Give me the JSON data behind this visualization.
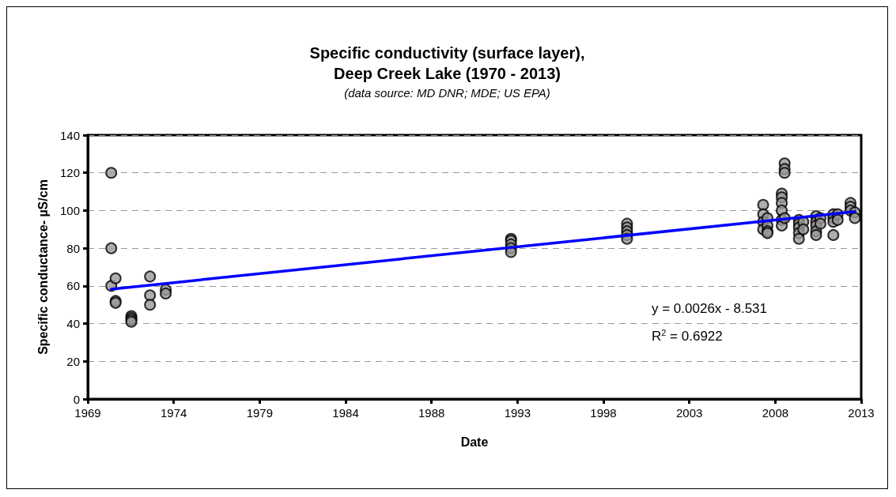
{
  "chart_data": {
    "type": "scatter",
    "title": "Specific conductivity (surface layer),\nDeep Creek Lake (1970 - 2013)",
    "subtitle": "(data source: MD DNR; MDE; US EPA)",
    "xlabel": "Date",
    "ylabel": "Specific conductance- µS/cm",
    "annotations": [
      "y = 0.0026x - 8.531",
      "R$^{2}$ = 0.6922"
    ],
    "xlim": [
      "1969-01-01",
      "2013-12-28"
    ],
    "xticks": [
      {
        "value": "1969-01-01",
        "label": "1969"
      },
      {
        "value": "1974-01-01",
        "label": "1974"
      },
      {
        "value": "1979-01-01",
        "label": "1979"
      },
      {
        "value": "1984-01-01",
        "label": "1984"
      },
      {
        "value": "1988-12-31",
        "label": "1988"
      },
      {
        "value": "1993-12-30",
        "label": "1993"
      },
      {
        "value": "1998-12-30",
        "label": "1998"
      },
      {
        "value": "2003-12-30",
        "label": "2003"
      },
      {
        "value": "2008-12-29",
        "label": "2008"
      },
      {
        "value": "2013-12-28",
        "label": "2013"
      }
    ],
    "ylim": [
      0,
      140
    ],
    "yticks": [
      0,
      20,
      40,
      60,
      80,
      100,
      120,
      140
    ],
    "grid": "y",
    "marker": "circle",
    "series": [
      {
        "color": "#999999",
        "x": [
          "1970-05-15",
          "1970-05-15",
          "1970-05-15",
          "1970-08-15",
          "1970-08-15",
          "1970-08-15",
          "1971-07-15",
          "1971-07-15",
          "1971-07-15",
          "1971-07-15",
          "1972-08-15",
          "1972-08-15",
          "1972-08-15",
          "1973-07-15",
          "1973-07-15",
          "1993-08-15",
          "1993-08-15",
          "1993-08-15",
          "1993-08-15",
          "1993-08-15",
          "2000-05-15",
          "2000-05-15",
          "2000-05-15",
          "2000-05-15",
          "2000-05-15",
          "2008-04-15",
          "2008-04-15",
          "2008-04-15",
          "2008-04-15",
          "2008-07-15",
          "2008-07-15",
          "2008-07-15",
          "2008-07-15",
          "2009-05-15",
          "2009-05-15",
          "2009-05-15",
          "2009-05-15",
          "2009-05-15",
          "2009-05-15",
          "2009-07-15",
          "2009-07-15",
          "2009-07-15",
          "2009-07-15",
          "2010-05-15",
          "2010-05-15",
          "2010-05-15",
          "2010-05-15",
          "2010-05-15",
          "2010-08-15",
          "2010-08-15",
          "2011-05-15",
          "2011-05-15",
          "2011-05-15",
          "2011-05-15",
          "2011-05-15",
          "2011-08-15",
          "2011-08-15",
          "2012-05-15",
          "2012-05-15",
          "2012-05-15",
          "2012-05-15",
          "2012-08-15",
          "2012-08-15",
          "2013-05-15",
          "2013-05-15",
          "2013-05-15",
          "2013-08-15",
          "2013-08-15"
        ],
        "values": [
          120,
          80,
          60,
          64,
          52,
          51,
          44,
          43,
          42,
          41,
          65,
          55,
          50,
          58,
          56,
          85,
          84,
          82,
          80,
          78,
          93,
          91,
          89,
          87,
          85,
          103,
          98,
          94,
          90,
          96,
          92,
          89,
          88,
          109,
          107,
          104,
          100,
          95,
          92,
          125,
          122,
          120,
          96,
          95,
          93,
          91,
          88,
          85,
          94,
          90,
          97,
          94,
          92,
          89,
          87,
          96,
          93,
          98,
          96,
          94,
          87,
          98,
          95,
          104,
          102,
          100,
          99,
          96
        ]
      },
      {
        "type": "line",
        "color": "#0000ff",
        "marker": "none",
        "line_style": "solid",
        "x": [
          "1970-05-15",
          "2013-08-15"
        ],
        "values": [
          58.3,
          99.4
        ]
      }
    ]
  }
}
